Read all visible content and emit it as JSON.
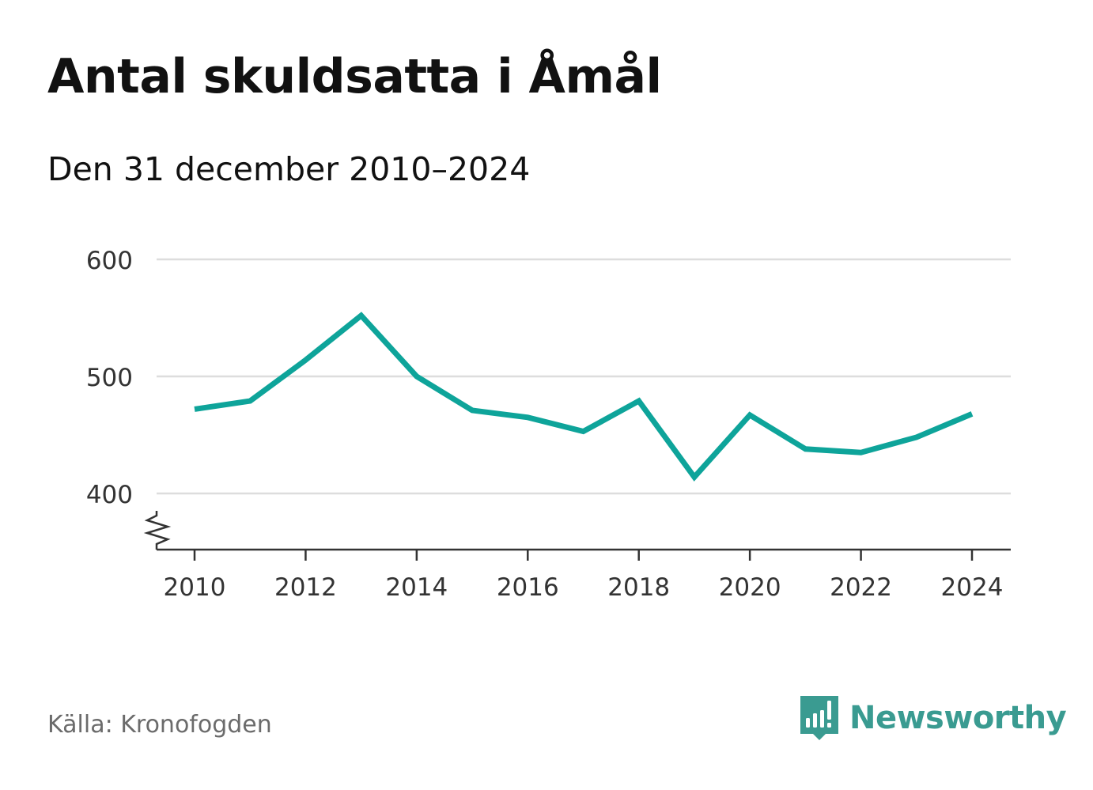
{
  "title": "Antal skuldsatta i Åmål",
  "subtitle": "Den 31 december 2010–2024",
  "source": "Källa: Kronofogden",
  "brand": {
    "name": "Newsworthy",
    "icon": "newsworthy-logo-icon",
    "color": "#3a9b91"
  },
  "colors": {
    "line": "#0ea49a",
    "grid": "#dddddd",
    "axis": "#333333",
    "tick_text": "#333333"
  },
  "chart_data": {
    "type": "line",
    "title": "Antal skuldsatta i Åmål",
    "subtitle": "Den 31 december 2010–2024",
    "xlabel": "",
    "ylabel": "",
    "x": [
      2010,
      2011,
      2012,
      2013,
      2014,
      2015,
      2016,
      2017,
      2018,
      2019,
      2020,
      2021,
      2022,
      2023,
      2024
    ],
    "series": [
      {
        "name": "Antal skuldsatta",
        "values": [
          472,
          479,
          514,
          552,
          500,
          471,
          465,
          453,
          479,
          414,
          467,
          438,
          435,
          448,
          468
        ]
      }
    ],
    "ylim": [
      350,
      600
    ],
    "yticks": [
      400,
      500,
      600
    ],
    "ytick_labels": [
      "400",
      "500",
      "600"
    ],
    "xticks": [
      2010,
      2012,
      2014,
      2016,
      2018,
      2020,
      2022,
      2024
    ],
    "xtick_labels": [
      "2010",
      "2012",
      "2014",
      "2016",
      "2018",
      "2020",
      "2022",
      "2024"
    ],
    "grid": true,
    "axis_break": true,
    "legend": "none"
  }
}
